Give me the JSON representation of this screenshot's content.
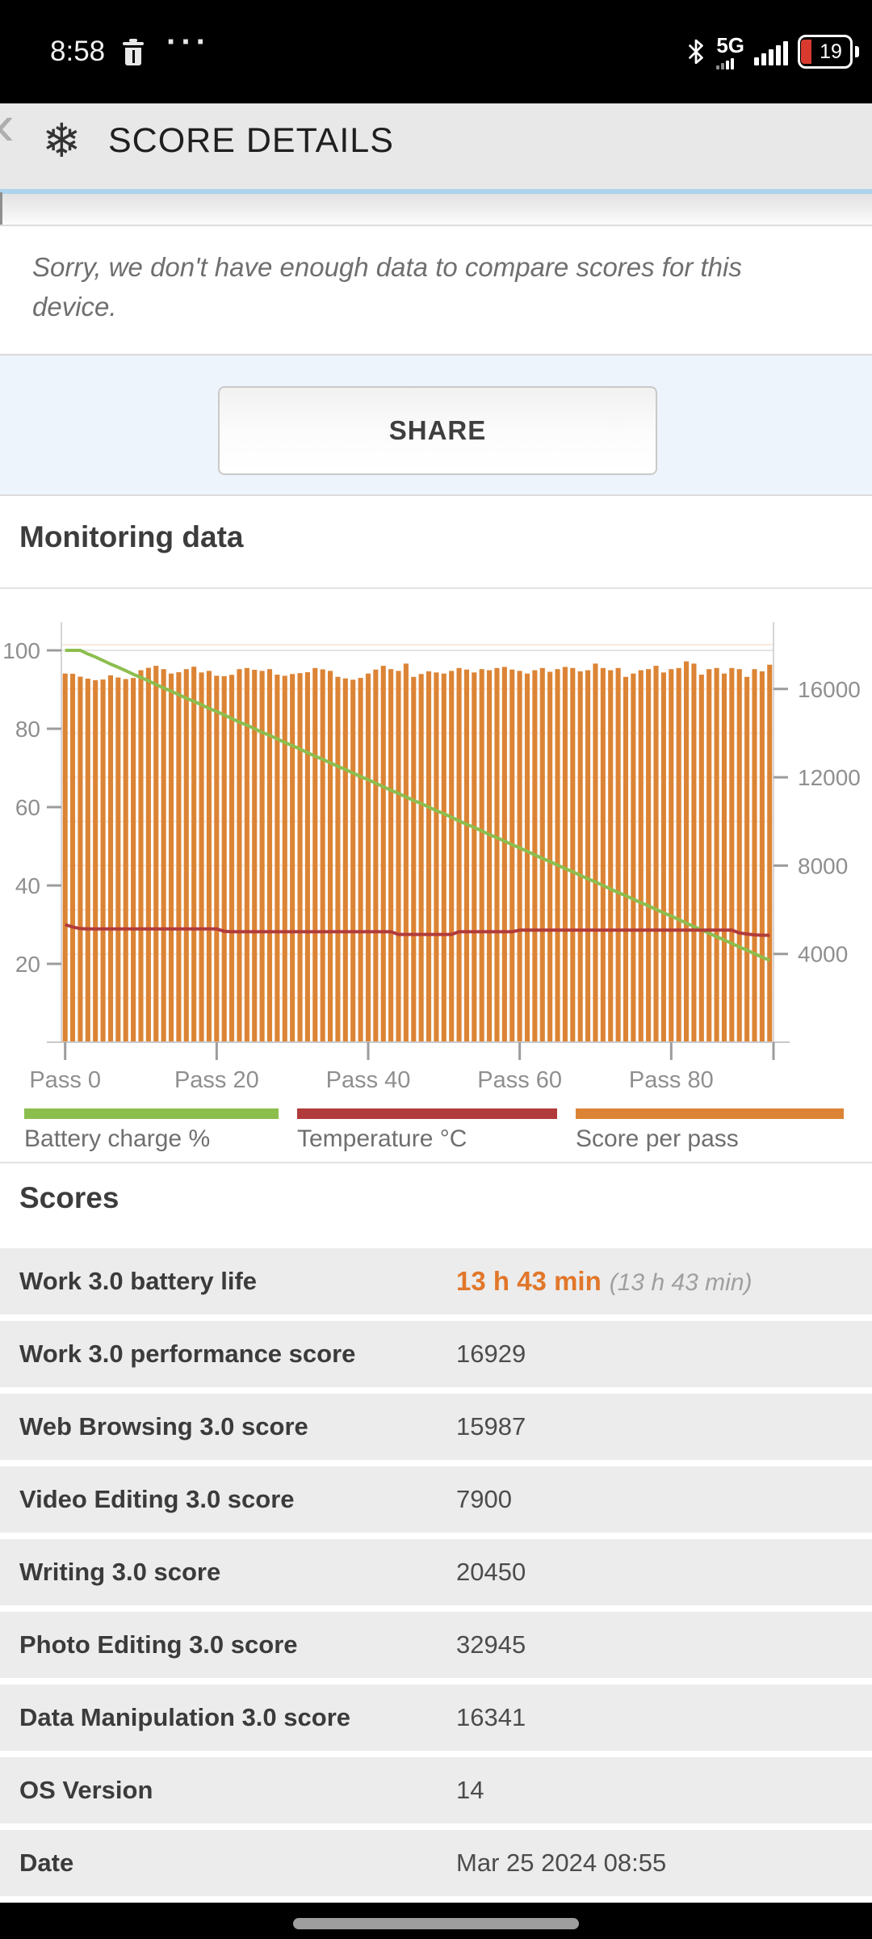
{
  "status_bar": {
    "time": "8:58",
    "dots": "···",
    "network": "5G",
    "battery_percent": "19"
  },
  "header": {
    "back_glyph": "‹",
    "logo_glyph": "❄",
    "title": "SCORE DETAILS"
  },
  "notice": {
    "text": "Sorry, we don't have enough data to compare scores for this device."
  },
  "share": {
    "label": "SHARE"
  },
  "monitoring": {
    "title": "Monitoring data"
  },
  "chart_data": {
    "type": "bar",
    "title": "Monitoring data",
    "x_ticks": [
      "Pass 0",
      "Pass 20",
      "Pass 40",
      "Pass 60",
      "Pass 80"
    ],
    "x_tick_passes": [
      0,
      20,
      40,
      60,
      80
    ],
    "left_axis": {
      "ticks": [
        20,
        40,
        60,
        80,
        100
      ],
      "range": [
        0,
        108
      ]
    },
    "right_axis": {
      "ticks": [
        4000,
        8000,
        12000,
        16000
      ],
      "range": [
        0,
        19000
      ]
    },
    "grid": "faint horizontal every 2000 score units",
    "legend_position": "bottom",
    "colors": {
      "battery": "#8cbe4e",
      "temperature": "#b13b3b",
      "score": "#dc8435"
    },
    "series": [
      {
        "name": "Battery charge %",
        "type": "line",
        "axis": "left",
        "values": [
          100,
          100,
          100,
          99.1,
          98.3,
          97.4,
          96.5,
          95.7,
          94.8,
          93.9,
          93.1,
          92.2,
          91.3,
          90.4,
          89.6,
          88.7,
          87.8,
          87.0,
          86.1,
          85.2,
          84.4,
          83.5,
          82.6,
          81.7,
          80.9,
          80.0,
          79.1,
          78.3,
          77.4,
          76.5,
          75.7,
          74.8,
          73.9,
          73.0,
          72.2,
          71.3,
          70.4,
          69.6,
          68.7,
          67.8,
          67.0,
          66.1,
          65.2,
          64.3,
          63.5,
          62.6,
          61.7,
          60.9,
          60.0,
          59.1,
          58.3,
          57.4,
          56.5,
          55.6,
          54.8,
          53.9,
          53.0,
          52.2,
          51.3,
          50.4,
          49.6,
          48.7,
          47.8,
          46.9,
          46.1,
          45.2,
          44.3,
          43.5,
          42.6,
          41.7,
          40.9,
          40.0,
          39.1,
          38.2,
          37.4,
          36.5,
          35.6,
          34.8,
          33.9,
          33.0,
          32.2,
          31.3,
          30.4,
          29.5,
          28.7,
          27.8,
          26.9,
          26.1,
          25.2,
          24.3,
          23.5,
          22.6,
          21.7,
          20.9
        ]
      },
      {
        "name": "Temperature °C",
        "type": "line",
        "axis": "left",
        "values": [
          30.0,
          29.4,
          29.0,
          28.9,
          28.9,
          28.9,
          28.9,
          28.9,
          28.9,
          28.9,
          28.9,
          28.9,
          28.9,
          28.9,
          28.9,
          28.9,
          28.9,
          28.9,
          28.9,
          28.9,
          28.9,
          28.3,
          28.2,
          28.2,
          28.2,
          28.2,
          28.2,
          28.2,
          28.2,
          28.2,
          28.2,
          28.2,
          28.2,
          28.2,
          28.2,
          28.2,
          28.2,
          28.2,
          28.2,
          28.2,
          28.2,
          28.2,
          28.2,
          28.2,
          27.5,
          27.5,
          27.5,
          27.5,
          27.5,
          27.5,
          27.5,
          27.5,
          28.2,
          28.2,
          28.2,
          28.2,
          28.2,
          28.2,
          28.2,
          28.2,
          28.6,
          28.6,
          28.6,
          28.6,
          28.6,
          28.6,
          28.6,
          28.6,
          28.6,
          28.6,
          28.6,
          28.6,
          28.6,
          28.6,
          28.6,
          28.6,
          28.6,
          28.6,
          28.6,
          28.6,
          28.6,
          28.6,
          28.6,
          28.6,
          28.6,
          28.6,
          28.6,
          28.6,
          28.6,
          27.9,
          27.6,
          27.4,
          27.3,
          27.3
        ]
      },
      {
        "name": "Score per pass",
        "type": "bar",
        "axis": "right",
        "values": [
          16700,
          16690,
          16560,
          16470,
          16400,
          16430,
          16620,
          16520,
          16450,
          16500,
          16850,
          16960,
          17050,
          16900,
          16700,
          16760,
          16900,
          17010,
          16750,
          16820,
          16600,
          16580,
          16640,
          16900,
          16950,
          16870,
          16820,
          16900,
          16650,
          16600,
          16680,
          16720,
          16760,
          16950,
          16890,
          16820,
          16550,
          16480,
          16420,
          16500,
          16700,
          16880,
          17050,
          16900,
          16820,
          17150,
          16550,
          16680,
          16800,
          16750,
          16700,
          16820,
          16950,
          16880,
          16750,
          16900,
          16850,
          16950,
          17000,
          16880,
          16820,
          16700,
          16850,
          16950,
          16780,
          16900,
          17000,
          16950,
          16800,
          16850,
          17150,
          16950,
          16850,
          16950,
          16550,
          16700,
          16850,
          16900,
          17050,
          16750,
          16900,
          16950,
          17250,
          17150,
          16650,
          16900,
          16950,
          16700,
          16950,
          16900,
          16550,
          16900,
          16800,
          17100
        ]
      }
    ]
  },
  "scores": {
    "title": "Scores",
    "battery_row": {
      "label": "Work 3.0 battery life",
      "value": "13 h 43 min",
      "note": "(13 h 43 min)"
    },
    "rows": [
      {
        "label": "Work 3.0 performance score",
        "value": "16929"
      },
      {
        "label": "Web Browsing 3.0 score",
        "value": "15987"
      },
      {
        "label": "Video Editing 3.0 score",
        "value": "7900"
      },
      {
        "label": "Writing 3.0 score",
        "value": "20450"
      },
      {
        "label": "Photo Editing 3.0 score",
        "value": "32945"
      },
      {
        "label": "Data Manipulation 3.0 score",
        "value": "16341"
      },
      {
        "label": "OS Version",
        "value": "14"
      },
      {
        "label": "Date",
        "value": "Mar 25 2024 08:55"
      }
    ]
  }
}
